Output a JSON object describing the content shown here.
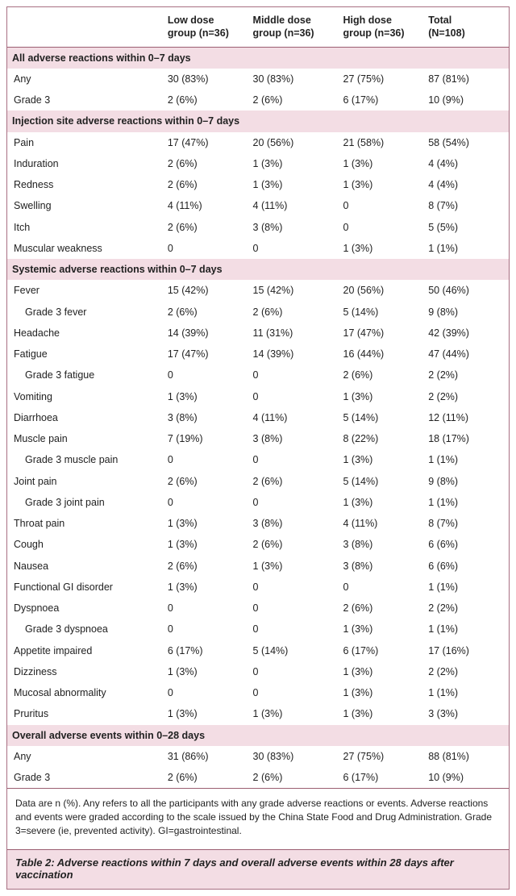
{
  "columns": [
    {
      "l1": "",
      "l2": ""
    },
    {
      "l1": "Low dose",
      "l2": "group (n=36)"
    },
    {
      "l1": "Middle dose",
      "l2": "group (n=36)"
    },
    {
      "l1": "High dose",
      "l2": "group (n=36)"
    },
    {
      "l1": "Total",
      "l2": "(N=108)"
    }
  ],
  "blocks": [
    {
      "title": "All adverse reactions within 0–7 days",
      "rows": [
        {
          "label": "Any",
          "v": [
            "30 (83%)",
            "30 (83%)",
            "27 (75%)",
            "87 (81%)"
          ]
        },
        {
          "label": "Grade 3",
          "v": [
            "2 (6%)",
            "2 (6%)",
            "6 (17%)",
            "10 (9%)"
          ]
        }
      ]
    },
    {
      "title": "Injection site adverse reactions within 0–7 days",
      "rows": [
        {
          "label": "Pain",
          "v": [
            "17 (47%)",
            "20 (56%)",
            "21 (58%)",
            "58 (54%)"
          ]
        },
        {
          "label": "Induration",
          "v": [
            "2 (6%)",
            "1 (3%)",
            "1 (3%)",
            "4 (4%)"
          ]
        },
        {
          "label": "Redness",
          "v": [
            "2 (6%)",
            "1 (3%)",
            "1 (3%)",
            "4 (4%)"
          ]
        },
        {
          "label": "Swelling",
          "v": [
            "4 (11%)",
            "4 (11%)",
            "0",
            "8 (7%)"
          ]
        },
        {
          "label": "Itch",
          "v": [
            "2 (6%)",
            "3 (8%)",
            "0",
            "5 (5%)"
          ]
        },
        {
          "label": "Muscular weakness",
          "v": [
            "0",
            "0",
            "1 (3%)",
            "1 (1%)"
          ]
        }
      ]
    },
    {
      "title": "Systemic adverse reactions within 0–7 days",
      "rows": [
        {
          "label": "Fever",
          "v": [
            "15 (42%)",
            "15 (42%)",
            "20 (56%)",
            "50 (46%)"
          ]
        },
        {
          "label": "Grade 3 fever",
          "indent": true,
          "v": [
            "2 (6%)",
            "2 (6%)",
            "5 (14%)",
            "9 (8%)"
          ]
        },
        {
          "label": "Headache",
          "v": [
            "14 (39%)",
            "11 (31%)",
            "17 (47%)",
            "42 (39%)"
          ]
        },
        {
          "label": "Fatigue",
          "v": [
            "17 (47%)",
            "14 (39%)",
            "16 (44%)",
            "47 (44%)"
          ]
        },
        {
          "label": "Grade 3 fatigue",
          "indent": true,
          "v": [
            "0",
            "0",
            "2 (6%)",
            "2 (2%)"
          ]
        },
        {
          "label": "Vomiting",
          "v": [
            "1 (3%)",
            "0",
            "1 (3%)",
            "2 (2%)"
          ]
        },
        {
          "label": "Diarrhoea",
          "v": [
            "3 (8%)",
            "4 (11%)",
            "5 (14%)",
            "12 (11%)"
          ]
        },
        {
          "label": "Muscle pain",
          "v": [
            "7 (19%)",
            "3 (8%)",
            "8 (22%)",
            "18 (17%)"
          ]
        },
        {
          "label": "Grade 3 muscle pain",
          "indent": true,
          "v": [
            "0",
            "0",
            "1 (3%)",
            "1 (1%)"
          ]
        },
        {
          "label": "Joint pain",
          "v": [
            "2 (6%)",
            "2 (6%)",
            "5 (14%)",
            "9 (8%)"
          ]
        },
        {
          "label": "Grade 3 joint pain",
          "indent": true,
          "v": [
            "0",
            "0",
            "1 (3%)",
            "1 (1%)"
          ]
        },
        {
          "label": "Throat pain",
          "v": [
            "1 (3%)",
            "3 (8%)",
            "4 (11%)",
            "8 (7%)"
          ]
        },
        {
          "label": "Cough",
          "v": [
            "1 (3%)",
            "2 (6%)",
            "3 (8%)",
            "6 (6%)"
          ]
        },
        {
          "label": "Nausea",
          "v": [
            "2 (6%)",
            "1 (3%)",
            "3 (8%)",
            "6 (6%)"
          ]
        },
        {
          "label": "Functional GI disorder",
          "v": [
            "1 (3%)",
            "0",
            "0",
            "1 (1%)"
          ]
        },
        {
          "label": "Dyspnoea",
          "v": [
            "0",
            "0",
            "2 (6%)",
            "2 (2%)"
          ]
        },
        {
          "label": "Grade 3 dyspnoea",
          "indent": true,
          "v": [
            "0",
            "0",
            "1 (3%)",
            "1 (1%)"
          ]
        },
        {
          "label": "Appetite impaired",
          "v": [
            "6 (17%)",
            "5 (14%)",
            "6 (17%)",
            "17 (16%)"
          ]
        },
        {
          "label": "Dizziness",
          "v": [
            "1 (3%)",
            "0",
            "1 (3%)",
            "2 (2%)"
          ]
        },
        {
          "label": "Mucosal abnormality",
          "v": [
            "0",
            "0",
            "1 (3%)",
            "1 (1%)"
          ]
        },
        {
          "label": "Pruritus",
          "v": [
            "1 (3%)",
            "1 (3%)",
            "1 (3%)",
            "3 (3%)"
          ]
        }
      ]
    },
    {
      "title": "Overall adverse events within 0–28 days",
      "rows": [
        {
          "label": "Any",
          "v": [
            "31 (86%)",
            "30 (83%)",
            "27 (75%)",
            "88 (81%)"
          ]
        },
        {
          "label": "Grade 3",
          "v": [
            "2 (6%)",
            "2 (6%)",
            "6 (17%)",
            "10 (9%)"
          ]
        }
      ]
    }
  ],
  "footnote": "Data are n (%). Any refers to all the participants with any grade adverse reactions or events. Adverse reactions and events were graded according to the scale issued by the China State Food and Drug Administration. Grade 3=severe (ie, prevented activity). GI=gastrointestinal.",
  "caption": "Table 2: Adverse reactions within 7 days and overall adverse events within 28 days after vaccination",
  "style": {
    "section_bg": "#f3dde4",
    "rule_color": "#9b5e71"
  }
}
